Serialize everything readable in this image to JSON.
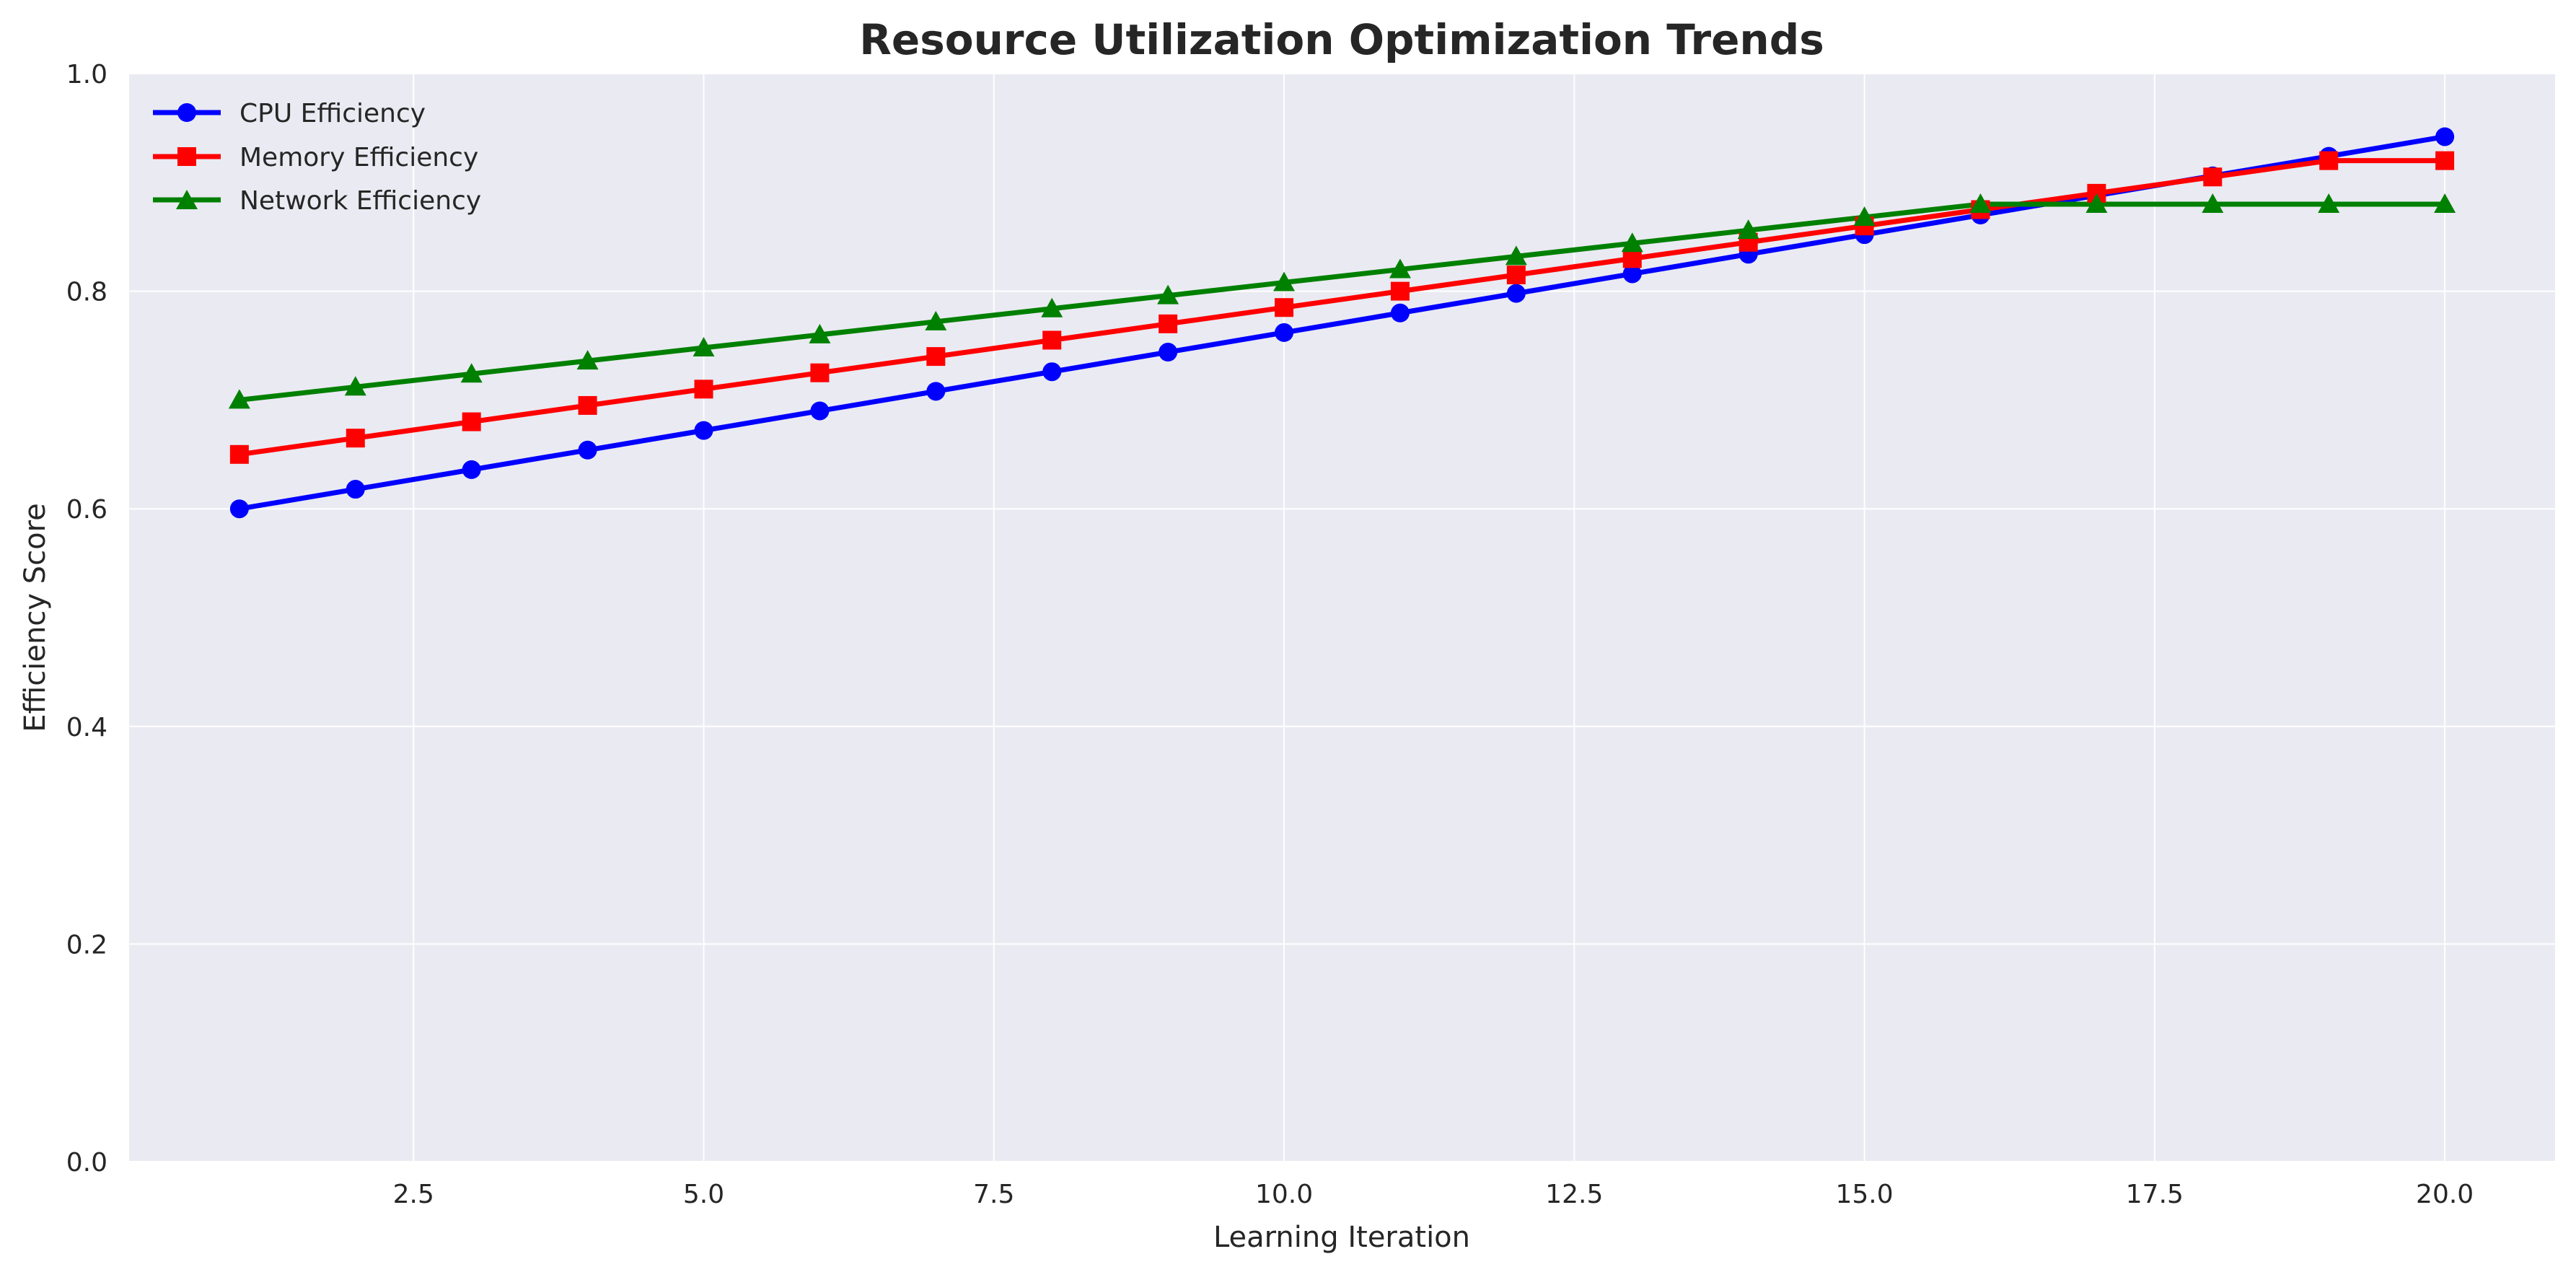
{
  "chart_data": {
    "type": "line",
    "title": "Resource Utilization Optimization Trends",
    "xlabel": "Learning Iteration",
    "ylabel": "Efficiency Score",
    "xlim": [
      0.05,
      20.95
    ],
    "ylim": [
      0.0,
      1.0
    ],
    "xticks": [
      "2.5",
      "5.0",
      "7.5",
      "10.0",
      "12.5",
      "15.0",
      "17.5",
      "20.0"
    ],
    "xtick_values": [
      2.5,
      5.0,
      7.5,
      10.0,
      12.5,
      15.0,
      17.5,
      20.0
    ],
    "yticks": [
      "0.0",
      "0.2",
      "0.4",
      "0.6",
      "0.8",
      "1.0"
    ],
    "ytick_values": [
      0.0,
      0.2,
      0.4,
      0.6,
      0.8,
      1.0
    ],
    "grid": true,
    "legend_position": "top-left",
    "background_color": "#eaeaf2",
    "x": [
      1,
      2,
      3,
      4,
      5,
      6,
      7,
      8,
      9,
      10,
      11,
      12,
      13,
      14,
      15,
      16,
      17,
      18,
      19,
      20
    ],
    "series": [
      {
        "name": "CPU Efficiency",
        "color": "#0000ff",
        "marker": "circle",
        "values": [
          0.6,
          0.618,
          0.636,
          0.654,
          0.672,
          0.69,
          0.708,
          0.726,
          0.744,
          0.762,
          0.78,
          0.798,
          0.816,
          0.834,
          0.852,
          0.87,
          0.888,
          0.906,
          0.924,
          0.942
        ]
      },
      {
        "name": "Memory Efficiency",
        "color": "#ff0000",
        "marker": "square",
        "values": [
          0.65,
          0.665,
          0.68,
          0.695,
          0.71,
          0.725,
          0.74,
          0.755,
          0.77,
          0.785,
          0.8,
          0.815,
          0.83,
          0.845,
          0.86,
          0.875,
          0.89,
          0.905,
          0.92,
          0.92
        ]
      },
      {
        "name": "Network Efficiency",
        "color": "#008000",
        "marker": "triangle",
        "values": [
          0.7,
          0.712,
          0.724,
          0.736,
          0.748,
          0.76,
          0.772,
          0.784,
          0.796,
          0.808,
          0.82,
          0.832,
          0.844,
          0.856,
          0.868,
          0.88,
          0.88,
          0.88,
          0.88,
          0.88
        ]
      }
    ]
  }
}
